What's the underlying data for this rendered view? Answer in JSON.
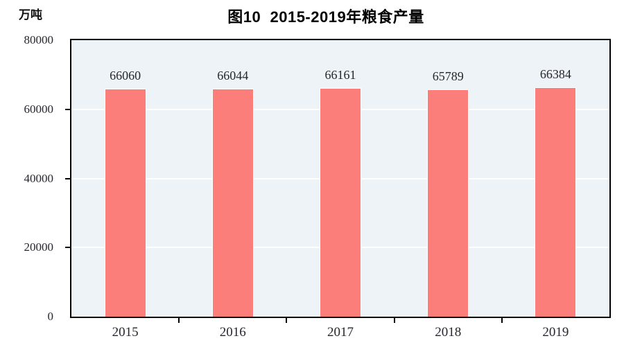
{
  "figure": {
    "title": "图10  2015-2019年粮食产量",
    "unit_label": "万吨"
  },
  "colors": {
    "bar_fill": "#FC7E7B",
    "bar_edge": "#FFFFFF",
    "panel_background": "#EDF3F6",
    "gridline": "#FFFFFF",
    "axis": "#000000",
    "label_text": "#26262E",
    "title_text": "#000000"
  },
  "chart_data": {
    "type": "bar",
    "title": "图10  2015-2019年粮食产量",
    "categories": [
      "2015",
      "2016",
      "2017",
      "2018",
      "2019"
    ],
    "values": [
      66060,
      66044,
      66161,
      65789,
      66384
    ],
    "bar_value_labels": [
      "66060",
      "66044",
      "66161",
      "65789",
      "66384"
    ],
    "xlabel": "",
    "ylabel": "万吨",
    "ylim": [
      0,
      80000
    ],
    "yticks": [
      0,
      20000,
      40000,
      60000,
      80000
    ],
    "ytick_labels": [
      "0",
      "20000",
      "40000",
      "60000",
      "80000"
    ],
    "grid": "horizontal major gridlines, white on light panel",
    "legend": "none"
  }
}
